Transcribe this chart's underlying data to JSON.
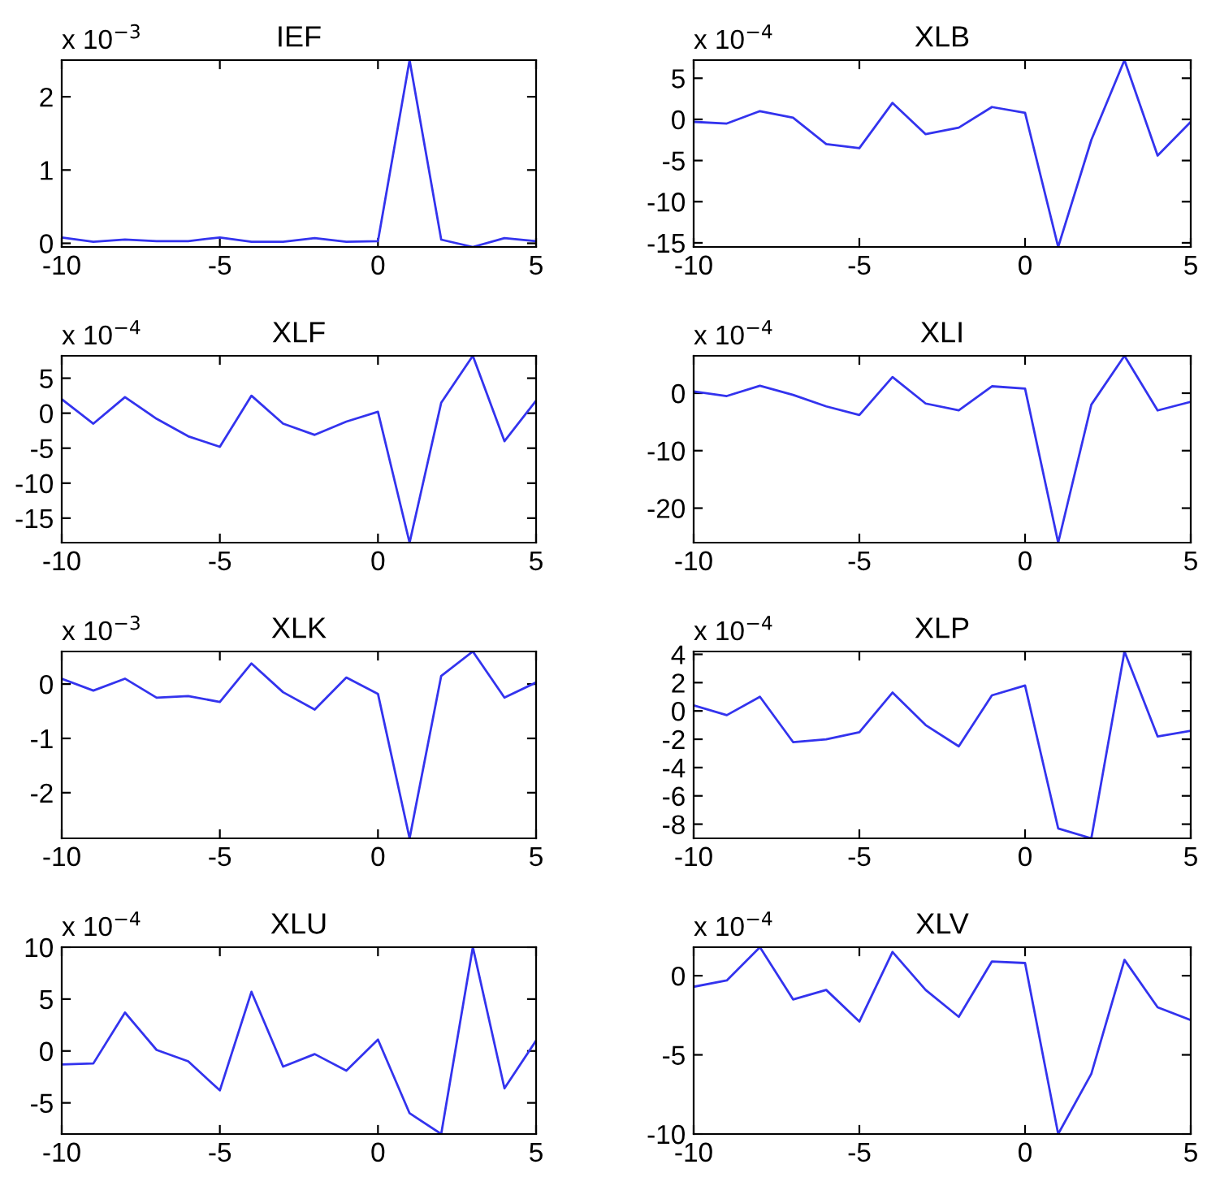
{
  "chart_data": [
    {
      "type": "line",
      "title": "IEF",
      "annotations": [
        "x 10$^{−3}$"
      ],
      "x": [
        -10,
        -9,
        -8,
        -7,
        -6,
        -5,
        -4,
        -3,
        -2,
        -1,
        0,
        1,
        2,
        3,
        4,
        5
      ],
      "series": [
        {
          "color": "#3333ee",
          "values": [
            0.08,
            0.02,
            0.05,
            0.03,
            0.03,
            0.08,
            0.02,
            0.02,
            0.07,
            0.02,
            0.03,
            2.5,
            0.05,
            -0.05,
            0.07,
            0.03
          ]
        }
      ],
      "xlim": [
        -10,
        5
      ],
      "xticks": [
        -10,
        -5,
        0,
        5
      ],
      "ylim": [
        -0.05,
        2.5
      ],
      "yticks": [
        0,
        1,
        2
      ],
      "grid": false
    },
    {
      "type": "line",
      "title": "XLB",
      "annotations": [
        "x 10$^{−4}$"
      ],
      "x": [
        -10,
        -9,
        -8,
        -7,
        -6,
        -5,
        -4,
        -3,
        -2,
        -1,
        0,
        1,
        2,
        3,
        4,
        5
      ],
      "series": [
        {
          "color": "#3333ee",
          "values": [
            -0.3,
            -0.5,
            1,
            0.2,
            -3,
            -3.5,
            2,
            -1.8,
            -1,
            1.5,
            0.8,
            -15.5,
            -2.5,
            7.2,
            -4.4,
            -0.3
          ]
        }
      ],
      "xlim": [
        -10,
        5
      ],
      "xticks": [
        -10,
        -5,
        0,
        5
      ],
      "ylim": [
        -15.5,
        7.2
      ],
      "yticks": [
        -15,
        -10,
        -5,
        0,
        5
      ],
      "grid": false
    },
    {
      "type": "line",
      "title": "XLF",
      "annotations": [
        "x 10$^{−4}$"
      ],
      "x": [
        -10,
        -9,
        -8,
        -7,
        -6,
        -5,
        -4,
        -3,
        -2,
        -1,
        0,
        1,
        2,
        3,
        4,
        5
      ],
      "series": [
        {
          "color": "#3333ee",
          "values": [
            2,
            -1.5,
            2.3,
            -0.8,
            -3.3,
            -4.8,
            2.5,
            -1.5,
            -3.1,
            -1.2,
            0.2,
            -18.5,
            1.5,
            8.2,
            -4,
            1.8
          ]
        }
      ],
      "xlim": [
        -10,
        5
      ],
      "xticks": [
        -10,
        -5,
        0,
        5
      ],
      "ylim": [
        -18.5,
        8.2
      ],
      "yticks": [
        -15,
        -10,
        -5,
        0,
        5
      ],
      "grid": false
    },
    {
      "type": "line",
      "title": "XLI",
      "annotations": [
        "x 10$^{−4}$"
      ],
      "x": [
        -10,
        -9,
        -8,
        -7,
        -6,
        -5,
        -4,
        -3,
        -2,
        -1,
        0,
        1,
        2,
        3,
        4,
        5
      ],
      "series": [
        {
          "color": "#3333ee",
          "values": [
            0.3,
            -0.5,
            1.3,
            -0.3,
            -2.3,
            -3.8,
            2.8,
            -1.8,
            -3,
            1.2,
            0.8,
            -26,
            -2,
            6.5,
            -3,
            -1.5
          ]
        }
      ],
      "xlim": [
        -10,
        5
      ],
      "xticks": [
        -10,
        -5,
        0,
        5
      ],
      "ylim": [
        -26,
        6.5
      ],
      "yticks": [
        -20,
        -10,
        0
      ],
      "grid": false
    },
    {
      "type": "line",
      "title": "XLK",
      "annotations": [
        "x 10$^{−3}$"
      ],
      "x": [
        -10,
        -9,
        -8,
        -7,
        -6,
        -5,
        -4,
        -3,
        -2,
        -1,
        0,
        1,
        2,
        3,
        4,
        5
      ],
      "series": [
        {
          "color": "#3333ee",
          "values": [
            0.1,
            -0.12,
            0.1,
            -0.25,
            -0.22,
            -0.33,
            0.38,
            -0.15,
            -0.47,
            0.12,
            -0.18,
            -2.84,
            0.15,
            0.6,
            -0.25,
            0.03
          ]
        }
      ],
      "xlim": [
        -10,
        5
      ],
      "xticks": [
        -10,
        -5,
        0,
        5
      ],
      "ylim": [
        -2.84,
        0.6
      ],
      "yticks": [
        -2,
        -1,
        0
      ],
      "grid": false
    },
    {
      "type": "line",
      "title": "XLP",
      "annotations": [
        "x 10$^{−4}$"
      ],
      "x": [
        -10,
        -9,
        -8,
        -7,
        -6,
        -5,
        -4,
        -3,
        -2,
        -1,
        0,
        1,
        2,
        3,
        4,
        5
      ],
      "series": [
        {
          "color": "#3333ee",
          "values": [
            0.4,
            -0.3,
            1,
            -2.2,
            -2,
            -1.5,
            1.3,
            -1,
            -2.5,
            1.1,
            1.8,
            -8.3,
            -9,
            4.2,
            -1.8,
            -1.4
          ]
        }
      ],
      "xlim": [
        -10,
        5
      ],
      "xticks": [
        -10,
        -5,
        0,
        5
      ],
      "ylim": [
        -9,
        4.2
      ],
      "yticks": [
        -8,
        -6,
        -4,
        -2,
        0,
        2,
        4
      ],
      "grid": false
    },
    {
      "type": "line",
      "title": "XLU",
      "annotations": [
        "x 10$^{−4}$"
      ],
      "x": [
        -10,
        -9,
        -8,
        -7,
        -6,
        -5,
        -4,
        -3,
        -2,
        -1,
        0,
        1,
        2,
        3,
        4,
        5
      ],
      "series": [
        {
          "color": "#3333ee",
          "values": [
            -1.3,
            -1.2,
            3.7,
            0.1,
            -1,
            -3.8,
            5.7,
            -1.5,
            -0.3,
            -1.9,
            1.1,
            -6,
            -8,
            10,
            -3.6,
            1
          ]
        }
      ],
      "xlim": [
        -10,
        5
      ],
      "xticks": [
        -10,
        -5,
        0,
        5
      ],
      "ylim": [
        -8,
        10
      ],
      "yticks": [
        -5,
        0,
        5,
        10
      ],
      "grid": false
    },
    {
      "type": "line",
      "title": "XLV",
      "annotations": [
        "x 10$^{−4}$"
      ],
      "x": [
        -10,
        -9,
        -8,
        -7,
        -6,
        -5,
        -4,
        -3,
        -2,
        -1,
        0,
        1,
        2,
        3,
        4,
        5
      ],
      "series": [
        {
          "color": "#3333ee",
          "values": [
            -0.7,
            -0.3,
            1.8,
            -1.5,
            -0.9,
            -2.9,
            1.5,
            -0.9,
            -2.6,
            0.9,
            0.8,
            -10,
            -6.2,
            1.0,
            -2,
            -2.8
          ]
        }
      ],
      "xlim": [
        -10,
        5
      ],
      "xticks": [
        -10,
        -5,
        0,
        5
      ],
      "ylim": [
        -10,
        1.8
      ],
      "yticks": [
        -10,
        -5,
        0
      ],
      "grid": false
    }
  ]
}
